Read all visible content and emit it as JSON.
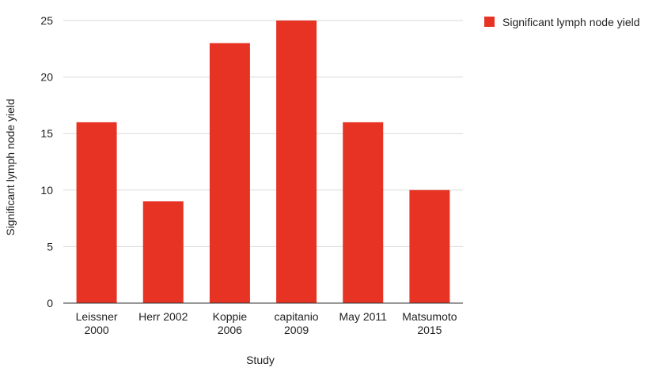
{
  "chart_data": {
    "type": "bar",
    "categories": [
      [
        "Leissner",
        "2000"
      ],
      [
        "Herr 2002"
      ],
      [
        "Koppie",
        "2006"
      ],
      [
        "capitanio",
        "2009"
      ],
      [
        "May 2011"
      ],
      [
        "Matsumoto",
        "2015"
      ]
    ],
    "series": [
      {
        "name": "Significant lymph node yield",
        "values": [
          16,
          9,
          23,
          25,
          16,
          10
        ]
      }
    ],
    "xlabel": "Study",
    "ylabel": "Significant lymph node yield",
    "ylim": [
      0,
      25
    ],
    "yticks": [
      0,
      5,
      10,
      15,
      20,
      25
    ],
    "grid": true,
    "legend": "top-right",
    "colors": {
      "bar": "#e63323",
      "grid": "#d9d9d9",
      "axis": "#333333"
    }
  }
}
